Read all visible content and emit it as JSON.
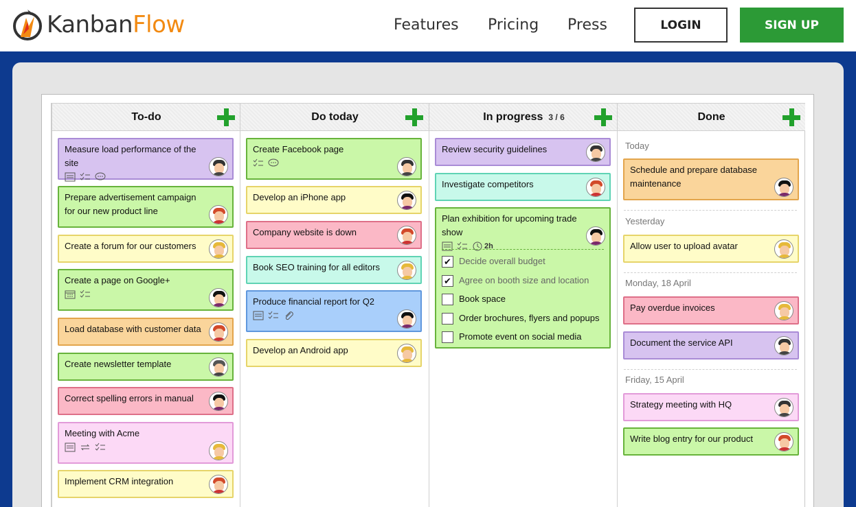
{
  "header": {
    "logo_kanban": "Kanban",
    "logo_flow": "Flow",
    "nav": [
      "Features",
      "Pricing",
      "Press"
    ],
    "login": "LOGIN",
    "signup": "SIGN UP"
  },
  "colors": {
    "accent_green": "#2c9a36",
    "background_blue": "#0d3a8f",
    "logo_orange": "#f28a12"
  },
  "columns": [
    {
      "title": "To-do",
      "count": ""
    },
    {
      "title": "Do today",
      "count": ""
    },
    {
      "title": "In progress",
      "count": "3 / 6"
    },
    {
      "title": "Done",
      "count": ""
    }
  ],
  "todo": [
    "Measure load performance of the site",
    "Prepare advertisement campaign for our new product line",
    "Create a forum for our customers",
    "Create a page on Google+",
    "Load database with customer data",
    "Create newsletter template",
    "Correct spelling errors in manual",
    "Meeting with Acme",
    "Implement CRM integration"
  ],
  "today": [
    "Create Facebook page",
    "Develop an iPhone app",
    "Company website is down",
    "Book SEO training for all editors",
    "Produce financial report for Q2",
    "Develop an Android app"
  ],
  "progress": {
    "cards": [
      "Review security guidelines",
      "Investigate competitors",
      "Plan exhibition for upcoming trade show"
    ],
    "time_estimate": "2h",
    "subtasks": [
      {
        "label": "Decide overall budget",
        "done": true
      },
      {
        "label": "Agree on booth size and location",
        "done": true
      },
      {
        "label": "Book space",
        "done": false
      },
      {
        "label": "Order brochures, flyers and popups",
        "done": false
      },
      {
        "label": "Promote event on social media",
        "done": false
      }
    ],
    "check_mark": "✔"
  },
  "done": {
    "groups": [
      {
        "date": "Today",
        "cards": [
          "Schedule and prepare database maintenance"
        ]
      },
      {
        "date": "Yesterday",
        "cards": [
          "Allow user to upload avatar"
        ]
      },
      {
        "date": "Monday, 18 April",
        "cards": [
          "Pay overdue invoices",
          "Document the service API"
        ]
      },
      {
        "date": "Friday, 15 April",
        "cards": [
          "Strategy meeting with HQ",
          "Write blog entry for our product"
        ]
      }
    ]
  }
}
